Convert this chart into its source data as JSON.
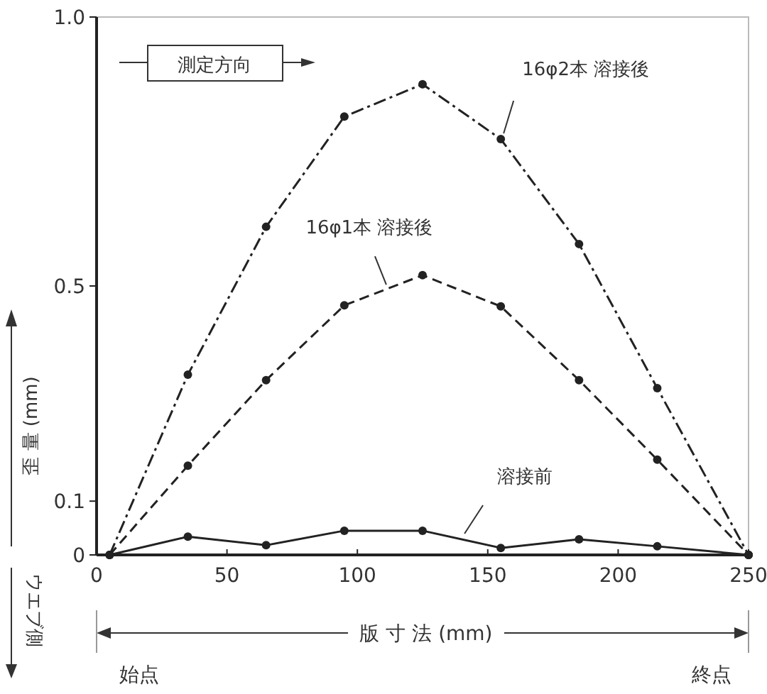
{
  "chart_data": {
    "type": "line",
    "xlabel": "版 寸 法 (mm)",
    "ylabel": "歪 量 (mm)",
    "x": [
      5,
      35,
      65,
      95,
      125,
      155,
      185,
      215,
      250
    ],
    "series": [
      {
        "name": "16φ2本 溶接後",
        "color": "#222222",
        "line_style": "dashdot",
        "values": [
          0,
          0.335,
          0.61,
          0.815,
          0.875,
          0.773,
          0.578,
          0.31,
          0
        ]
      },
      {
        "name": "16φ1本 溶接後",
        "color": "#222222",
        "line_style": "dashed",
        "values": [
          0,
          0.166,
          0.325,
          0.464,
          0.52,
          0.462,
          0.325,
          0.177,
          0
        ]
      },
      {
        "name": "溶接前",
        "color": "#222222",
        "line_style": "solid",
        "values": [
          0,
          0.034,
          0.018,
          0.045,
          0.045,
          0.013,
          0.029,
          0.016,
          0
        ]
      }
    ],
    "marker": "circle",
    "xlim": [
      0,
      250
    ],
    "ylim": [
      0,
      1.0
    ],
    "xticks": [
      0,
      50,
      100,
      150,
      200,
      250
    ],
    "yticks": [
      0,
      0.1,
      0.5,
      {
        "value": 1.0,
        "label": "1.0"
      }
    ],
    "grid": false,
    "annotations": [
      "測定方向",
      "ウエブ側",
      "始点",
      "終点"
    ]
  }
}
